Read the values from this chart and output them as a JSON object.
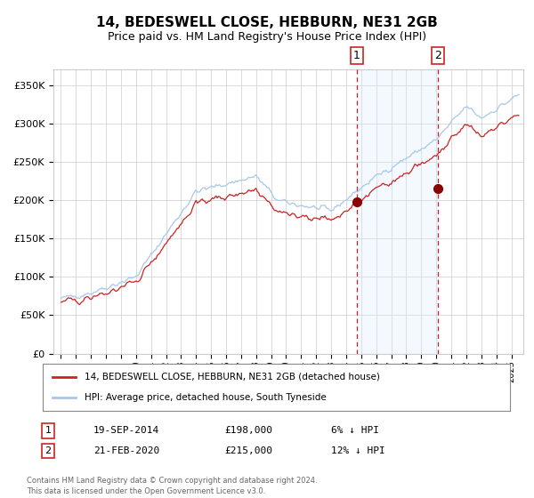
{
  "title": "14, BEDESWELL CLOSE, HEBBURN, NE31 2GB",
  "subtitle": "Price paid vs. HM Land Registry's House Price Index (HPI)",
  "legend_line1": "14, BEDESWELL CLOSE, HEBBURN, NE31 2GB (detached house)",
  "legend_line2": "HPI: Average price, detached house, South Tyneside",
  "ann1_date": "19-SEP-2014",
  "ann1_price": "£198,000",
  "ann1_hpi": "6% ↓ HPI",
  "ann2_date": "21-FEB-2020",
  "ann2_price": "£215,000",
  "ann2_hpi": "12% ↓ HPI",
  "footer": "Contains HM Land Registry data © Crown copyright and database right 2024.\nThis data is licensed under the Open Government Licence v3.0.",
  "sale1_year": 2014.72,
  "sale1_value": 198000,
  "sale2_year": 2020.13,
  "sale2_value": 215000,
  "hpi_color": "#a8c8e8",
  "property_color": "#cc2222",
  "dot_color": "#8b0000",
  "vline_color": "#cc2222",
  "shade_color": "#ddeeff",
  "ylim_max": 370000,
  "ylim_min": 0,
  "xlim_min": 1994.5,
  "xlim_max": 2025.8,
  "background_color": "#ffffff",
  "grid_color": "#cccccc"
}
